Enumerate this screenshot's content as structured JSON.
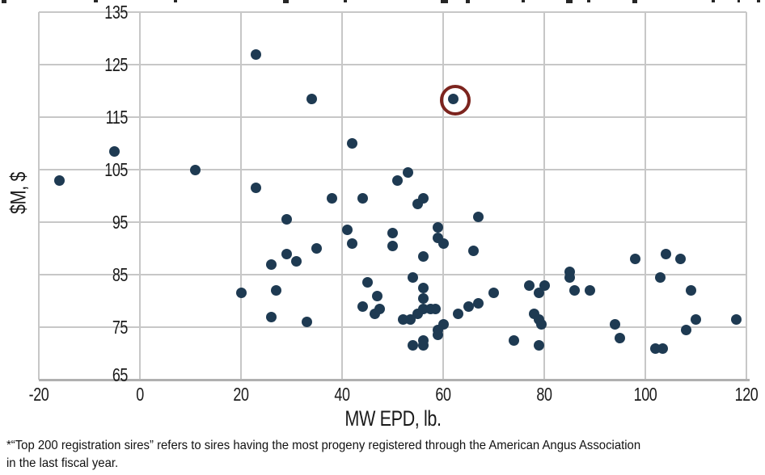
{
  "chart_data": {
    "type": "scatter",
    "title": "",
    "xlabel": "MW EPD, lb.",
    "ylabel": "$M, $",
    "xlim": [
      -20,
      120
    ],
    "ylim": [
      65,
      135
    ],
    "xticks": [
      -20,
      0,
      20,
      40,
      60,
      80,
      100,
      120
    ],
    "yticks": [
      65,
      75,
      85,
      95,
      105,
      115,
      125,
      135
    ],
    "grid": true,
    "legend_position": "none",
    "marker_color": "#1e3a52",
    "grid_color": "#c7c7c7",
    "axis_line_color": "#b0b0b0",
    "highlight_ring_color": "#7c241e",
    "highlighted_point": {
      "x": 62,
      "y": 118.5
    },
    "points": [
      [
        -16,
        103
      ],
      [
        -5,
        108.5
      ],
      [
        11,
        105
      ],
      [
        23,
        127
      ],
      [
        23,
        101.5
      ],
      [
        34,
        118.5
      ],
      [
        62,
        118.5
      ],
      [
        42,
        110
      ],
      [
        53,
        104.5
      ],
      [
        51,
        103
      ],
      [
        55,
        98.5
      ],
      [
        38,
        99.5
      ],
      [
        44,
        99.5
      ],
      [
        56,
        99.5
      ],
      [
        29,
        95.5
      ],
      [
        67,
        96
      ],
      [
        41,
        93.5
      ],
      [
        50,
        93
      ],
      [
        59,
        94
      ],
      [
        59,
        92
      ],
      [
        60,
        91
      ],
      [
        42,
        91
      ],
      [
        35,
        90
      ],
      [
        29,
        89
      ],
      [
        50,
        90.5
      ],
      [
        66,
        89.5
      ],
      [
        56,
        88.5
      ],
      [
        31,
        87.5
      ],
      [
        26,
        87
      ],
      [
        98,
        88
      ],
      [
        104,
        89
      ],
      [
        107,
        88
      ],
      [
        54,
        84.5
      ],
      [
        85,
        85.5
      ],
      [
        85,
        84.5
      ],
      [
        103,
        84.5
      ],
      [
        45,
        83.5
      ],
      [
        27,
        82
      ],
      [
        77,
        83
      ],
      [
        80,
        83
      ],
      [
        86,
        82
      ],
      [
        89,
        82
      ],
      [
        109,
        82
      ],
      [
        20,
        81.5
      ],
      [
        47,
        81
      ],
      [
        70,
        81.5
      ],
      [
        79,
        81.5
      ],
      [
        56,
        82.5
      ],
      [
        56,
        80.5
      ],
      [
        44,
        79
      ],
      [
        67,
        79.5
      ],
      [
        65,
        79
      ],
      [
        56,
        78.5
      ],
      [
        57.5,
        78.5
      ],
      [
        58.5,
        78.5
      ],
      [
        46.5,
        77.5
      ],
      [
        47.5,
        78.5
      ],
      [
        63,
        77.5
      ],
      [
        55,
        77.5
      ],
      [
        26,
        77
      ],
      [
        78,
        77.5
      ],
      [
        52,
        76.5
      ],
      [
        53.5,
        76.5
      ],
      [
        33,
        76
      ],
      [
        79,
        76.5
      ],
      [
        110,
        76.5
      ],
      [
        118,
        76.5
      ],
      [
        60,
        75.5
      ],
      [
        79.5,
        75.5
      ],
      [
        94,
        75.5
      ],
      [
        59,
        74.5
      ],
      [
        108,
        74.5
      ],
      [
        59,
        73.5
      ],
      [
        95,
        73
      ],
      [
        74,
        72.5
      ],
      [
        56,
        72.5
      ],
      [
        54,
        71.5
      ],
      [
        56,
        71.5
      ],
      [
        79,
        71.5
      ],
      [
        102,
        71
      ],
      [
        103.5,
        71
      ]
    ]
  },
  "footnote": {
    "line1": "*“Top 200 registration sires” refers to sires having the most progeny registered through the American Angus Association",
    "line2": "in the last fiscal year."
  }
}
